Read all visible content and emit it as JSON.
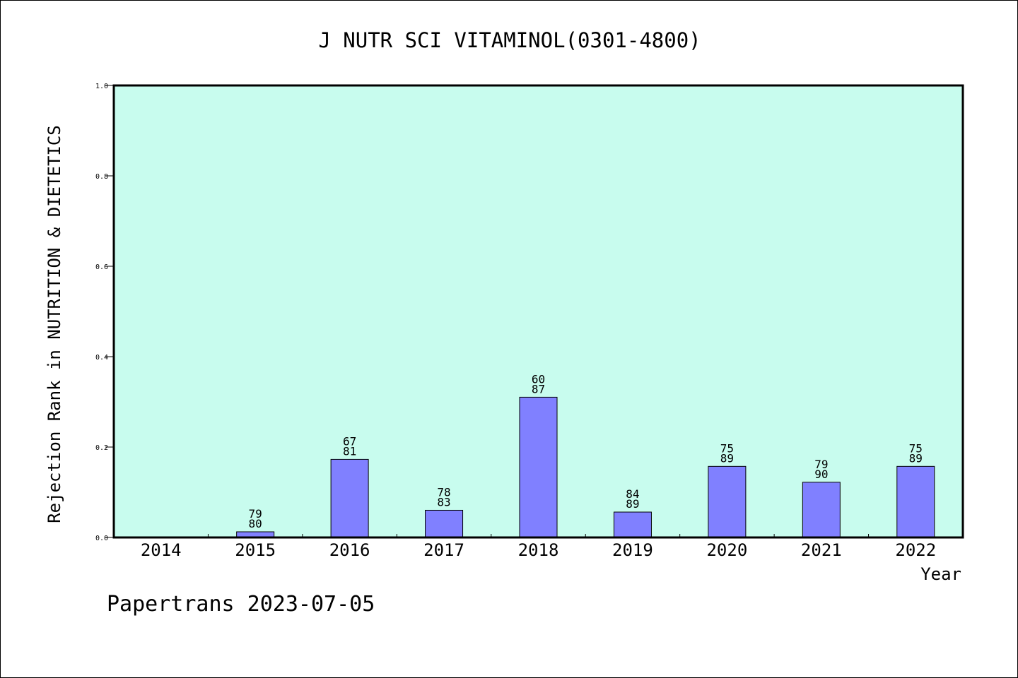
{
  "chart_data": {
    "type": "bar",
    "title": "J NUTR SCI VITAMINOL(0301-4800)",
    "xlabel": "Year",
    "ylabel": "Rejection Rank in NUTRITION & DIETETICS",
    "ylim": [
      0,
      1.0
    ],
    "yticks": [
      "0.0",
      "0.2",
      "0.4",
      "0.6",
      "0.8",
      "1.0"
    ],
    "categories": [
      "2014",
      "2015",
      "2016",
      "2017",
      "2018",
      "2019",
      "2020",
      "2021",
      "2022"
    ],
    "values": [
      0,
      0.0125,
      0.1728,
      0.0602,
      0.3103,
      0.0562,
      0.1573,
      0.1222,
      0.1573
    ],
    "label_top": [
      "",
      "79",
      "67",
      "78",
      "60",
      "84",
      "75",
      "79",
      "75"
    ],
    "label_bottom": [
      "",
      "80",
      "81",
      "83",
      "87",
      "89",
      "89",
      "90",
      "89"
    ],
    "grid": false,
    "legend": "none",
    "colors": {
      "plot_bg": "#c8fcee",
      "bar": "#8080ff",
      "border": "#000000"
    }
  },
  "footer": {
    "text": "Papertrans 2023-07-05"
  }
}
